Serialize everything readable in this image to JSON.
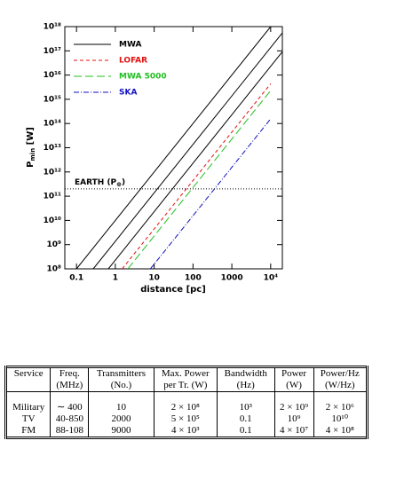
{
  "chart_data": {
    "type": "line",
    "x_label": "distance [pc]",
    "y_label": {
      "base": "P",
      "sub": "min",
      "unit": " [W]"
    },
    "log_x": true,
    "log_y": true,
    "xlim": [
      0.05,
      20000
    ],
    "ylim": [
      100000000,
      1000000000000000000
    ],
    "xticks": [
      0.1,
      1,
      10,
      100,
      1000,
      {
        "value": 10000,
        "label": "10⁴"
      }
    ],
    "yticks": [
      {
        "value": 100000000,
        "label": "10⁸"
      },
      {
        "value": 1000000000,
        "label": "10⁹"
      },
      {
        "value": 10000000000,
        "label": "10¹⁰"
      },
      {
        "value": 100000000000,
        "label": "10¹¹"
      },
      {
        "value": 1000000000000,
        "label": "10¹²"
      },
      {
        "value": 10000000000000,
        "label": "10¹³"
      },
      {
        "value": 100000000000000,
        "label": "10¹⁴"
      },
      {
        "value": 1000000000000000,
        "label": "10¹⁵"
      },
      {
        "value": 10000000000000000,
        "label": "10¹⁶"
      },
      {
        "value": 100000000000000000,
        "label": "10¹⁷"
      },
      {
        "value": 1000000000000000000,
        "label": "10¹⁸"
      }
    ],
    "legend": "upper left",
    "series": [
      {
        "name": "MWA",
        "color": "#000000",
        "dash": "none",
        "lines": [
          {
            "x": [
              0.1,
              10000
            ],
            "values": [
              100000000,
              1000000000000000000
            ]
          },
          {
            "x": [
              0.27,
              20000
            ],
            "values": [
              100000000,
              550000000000000000
            ]
          },
          {
            "x": [
              0.66,
              20000
            ],
            "values": [
              100000000,
              92000000000000000
            ]
          }
        ]
      },
      {
        "name": "LOFAR",
        "color": "#e01010",
        "dash": "4 3",
        "lines": [
          {
            "x": [
              1.5,
              10000
            ],
            "values": [
              100000000,
              4400000000000000
            ]
          }
        ]
      },
      {
        "name": "MWA 5000",
        "color": "#20c020",
        "dash": "9 4",
        "lines": [
          {
            "x": [
              2.1,
              10000
            ],
            "values": [
              100000000,
              2300000000000000
            ]
          }
        ]
      },
      {
        "name": "SKA",
        "color": "#1010c0",
        "dash": "6 2 1 2",
        "lines": [
          {
            "x": [
              8,
              10000
            ],
            "values": [
              100000000,
              156000000000000
            ]
          }
        ]
      }
    ],
    "reference": {
      "value": 200000000000,
      "label": {
        "base": "EARTH (P",
        "sub": "⊕",
        "end": ")"
      }
    }
  },
  "table": {
    "header": [
      [
        "Service",
        "Freq.",
        "Transmitters",
        "Max. Power",
        "Bandwidth",
        "Power",
        "Power/Hz"
      ],
      [
        "",
        "(MHz)",
        "(No.)",
        "per Tr. (W)",
        "(Hz)",
        "(W)",
        "(W/Hz)"
      ]
    ],
    "rows": [
      [
        "Military",
        "∼ 400",
        "10",
        "2 × 10⁸",
        "10³",
        "2 × 10⁹",
        "2 × 10⁶"
      ],
      [
        "TV",
        "40-850",
        "2000",
        "5 × 10⁵",
        "0.1",
        "10⁹",
        "10¹⁰"
      ],
      [
        "FM",
        "88-108",
        "9000",
        "4 × 10³",
        "0.1",
        "4 × 10⁷",
        "4 × 10⁸"
      ]
    ]
  }
}
